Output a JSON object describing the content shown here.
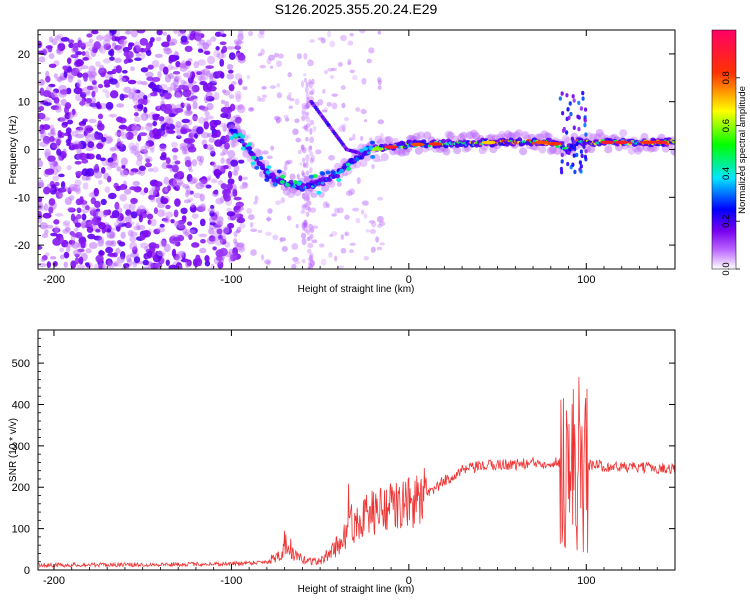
{
  "chart_data": [
    {
      "type": "heatmap",
      "title": "S126.2025.355.20.24.E29",
      "xlabel": "Height of straight line (km)",
      "ylabel": "Frequency (Hz)",
      "xlim": [
        -209,
        150
      ],
      "ylim": [
        -25,
        25
      ],
      "x_ticks": [
        -200,
        -100,
        0,
        100
      ],
      "x_tick_labels": [
        "-200",
        "-100",
        "0",
        "100"
      ],
      "y_ticks": [
        -20,
        -10,
        0,
        10,
        20
      ],
      "y_tick_labels": [
        "-20",
        "-10",
        "0",
        "10",
        "20"
      ],
      "colorbar": {
        "label": "Normalized spectral amplitude",
        "range": [
          0,
          1
        ],
        "ticks": [
          0.0,
          0.2,
          0.4,
          0.6,
          0.8
        ],
        "tick_labels": [
          "0.0",
          "0.2",
          "0.4",
          "0.6",
          "0.8"
        ],
        "colors": [
          "#ffffff",
          "#8800ff",
          "#0000ff",
          "#00ffff",
          "#00ff00",
          "#ffff00",
          "#ff0000",
          "#ff0066"
        ]
      },
      "features": {
        "ridge": [
          [
            -100,
            4
          ],
          [
            -90,
            0
          ],
          [
            -80,
            -5
          ],
          [
            -70,
            -7
          ],
          [
            -60,
            -8
          ],
          [
            -50,
            -7
          ],
          [
            -40,
            -5
          ],
          [
            -30,
            -2
          ],
          [
            -20,
            0
          ],
          [
            0,
            1
          ],
          [
            50,
            1.5
          ],
          [
            80,
            1.5
          ],
          [
            90,
            0
          ],
          [
            95,
            2
          ],
          [
            100,
            1.5
          ],
          [
            150,
            1.5
          ]
        ],
        "branch": [
          [
            -55,
            10
          ],
          [
            -45,
            5
          ],
          [
            -35,
            0
          ],
          [
            -25,
            -1
          ]
        ],
        "noise_region": [
          -209,
          -100
        ],
        "burst_region": [
          85,
          100
        ]
      }
    },
    {
      "type": "line",
      "xlabel": "Height of straight line (km)",
      "ylabel": "SNR (10 * v/v)",
      "xlim": [
        -209,
        150
      ],
      "ylim": [
        0,
        580
      ],
      "x_ticks": [
        -200,
        -100,
        0,
        100
      ],
      "x_tick_labels": [
        "-200",
        "-100",
        "0",
        "100"
      ],
      "y_ticks": [
        0,
        100,
        200,
        300,
        400,
        500
      ],
      "y_tick_labels": [
        "0",
        "100",
        "200",
        "300",
        "400",
        "500"
      ],
      "color": "#ee3333",
      "envelope": {
        "x": [
          -209,
          -150,
          -100,
          -80,
          -70,
          -60,
          -50,
          -40,
          -30,
          -20,
          -10,
          0,
          10,
          20,
          30,
          40,
          50,
          60,
          70,
          80,
          85,
          90,
          95,
          100,
          105,
          110,
          150
        ],
        "y": [
          12,
          13,
          15,
          20,
          45,
          25,
          20,
          60,
          120,
          140,
          150,
          160,
          180,
          215,
          240,
          250,
          255,
          255,
          258,
          260,
          260,
          250,
          260,
          250,
          255,
          250,
          245
        ]
      }
    }
  ]
}
